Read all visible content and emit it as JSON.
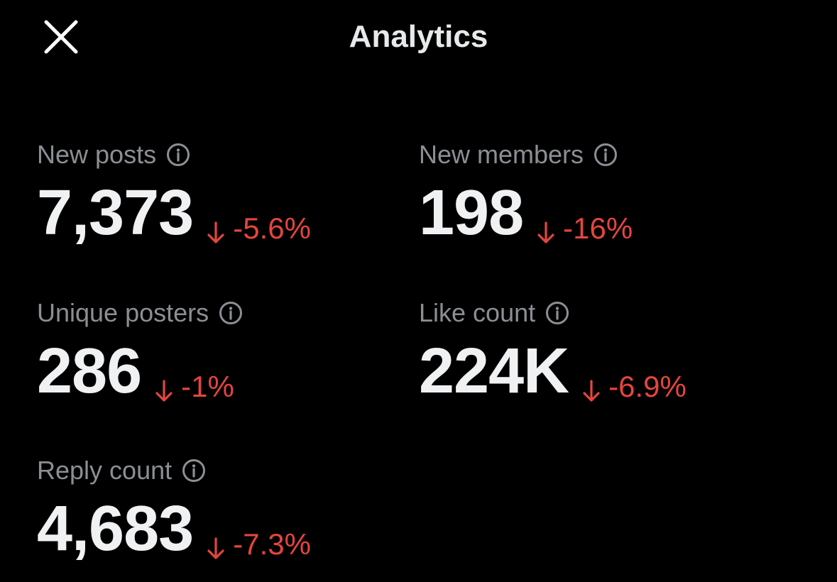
{
  "header": {
    "title": "Analytics"
  },
  "metrics": [
    {
      "label": "New posts",
      "value": "7,373",
      "change": "-5.6%"
    },
    {
      "label": "New members",
      "value": "198",
      "change": "-16%"
    },
    {
      "label": "Unique posters",
      "value": "286",
      "change": "-1%"
    },
    {
      "label": "Like count",
      "value": "224K",
      "change": "-6.9%"
    },
    {
      "label": "Reply count",
      "value": "4,683",
      "change": "-7.3%"
    }
  ]
}
